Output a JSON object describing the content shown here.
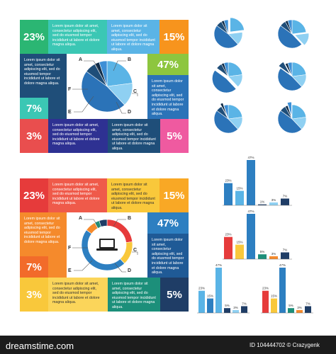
{
  "lorem": "Lorem ipsum dolor sit amet, consectetur adipiscing elit, sed do eiusmod tempor incididunt ut labore et dolore magna aliqua.",
  "letters": [
    "A",
    "B",
    "C",
    "D",
    "E",
    "F"
  ],
  "colors": {
    "top_blue_dark": "#1f4e79",
    "top_blue": "#2b73b8",
    "top_blue_light": "#5ab4e6",
    "top_green": "#2bb673",
    "top_lime": "#8dc63f",
    "top_teal": "#3bc7b4",
    "top_red": "#e94e4e",
    "top_pink": "#ef5aa0",
    "top_orange": "#f7941d",
    "top_navy": "#2e3192",
    "bottom_red": "#e63b3b",
    "bottom_orange": "#f58a2c",
    "bottom_yellow": "#f9c83b",
    "bottom_blue": "#2d7fc1",
    "bottom_teal": "#1c8f7a",
    "bottom_navy": "#1f3d66"
  },
  "top_infographic": {
    "percents": {
      "tl": "23%",
      "tr": "15%",
      "r": "47%",
      "l": "7%",
      "bl": "3%",
      "br": "5%"
    }
  },
  "bottom_infographic": {
    "percents": {
      "tl": "23%",
      "tr": "15%",
      "r": "47%",
      "l": "7%",
      "bl": "3%",
      "br": "5%"
    }
  },
  "chart_data": [
    {
      "type": "pie",
      "values": [
        23,
        15,
        47,
        7,
        3,
        5
      ]
    },
    {
      "type": "pie",
      "values": [
        23,
        15,
        47,
        7,
        3,
        5
      ]
    },
    {
      "type": "pie",
      "values": [
        23,
        15,
        47,
        7,
        3,
        5
      ]
    },
    {
      "type": "pie",
      "values": [
        23,
        15,
        47,
        7,
        3,
        5
      ]
    },
    {
      "type": "pie",
      "values": [
        23,
        15,
        47,
        7,
        3,
        5
      ]
    },
    {
      "type": "pie",
      "values": [
        23,
        15,
        47,
        7,
        3,
        5
      ]
    },
    {
      "type": "bar",
      "values": [
        23,
        15,
        47,
        1,
        3,
        7
      ],
      "labels": [
        "23%",
        "15%",
        "47%",
        "1%",
        "3%",
        "7%"
      ]
    },
    {
      "type": "bar",
      "values": [
        23,
        15,
        47,
        5,
        3,
        7
      ],
      "labels": [
        "23%",
        "15%",
        "47%",
        "5%",
        "3%",
        "7%"
      ]
    },
    {
      "type": "bar",
      "values": [
        23,
        15,
        47,
        5,
        3,
        7
      ],
      "labels": [
        "23%",
        "15%",
        "47%",
        "5%",
        "3%",
        "7%"
      ]
    },
    {
      "type": "bar",
      "values": [
        23,
        15,
        47,
        5,
        3,
        7
      ],
      "labels": [
        "23%",
        "15%",
        "47%",
        "5%",
        "3%",
        "7%"
      ]
    }
  ],
  "footer": {
    "site": "dreamstime.com",
    "id_text": "ID 104444702 © Crazygenk"
  }
}
